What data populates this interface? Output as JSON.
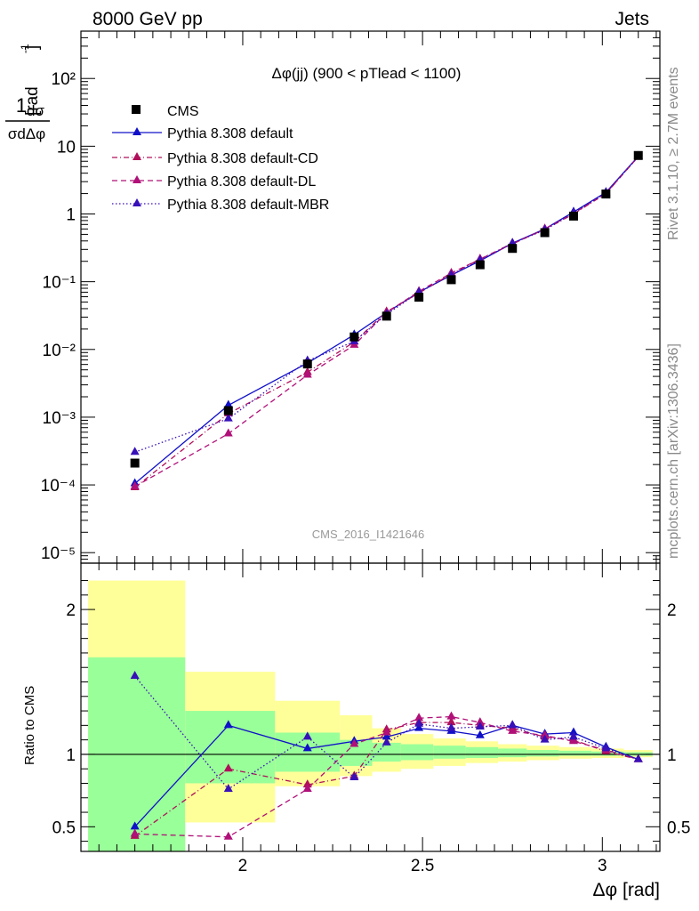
{
  "header": {
    "left": "8000 GeV pp",
    "right": "Jets"
  },
  "side_text": {
    "rivet": "Rivet 3.1.10, ≥ 2.7M events",
    "mcplots": "mcplots.cern.ch [arXiv:1306.3436]"
  },
  "colors": {
    "cms": "#000000",
    "default": "#1010c8",
    "cd": "#b0105a",
    "dl": "#b01078",
    "mbr": "#3810b8",
    "band_inner": "#99ff99",
    "band_outer": "#ffff99"
  },
  "chart_data": [
    {
      "type": "line",
      "title": "Δφ(jj) (900 < pTlead <  1100)",
      "ylabel": "1/σ dσ/dΔφ [rad⁻¹]",
      "watermark": "CMS_2016_I1421646",
      "yscale": "log",
      "ylim": [
        7e-06,
        500
      ],
      "xlim": [
        1.55,
        3.16
      ],
      "x_ticks": [
        "2",
        "2.5",
        "3"
      ],
      "y_ticks": [
        "10⁻⁵",
        "10⁻⁴",
        "10⁻³",
        "10⁻²",
        "10⁻¹",
        "1",
        "10",
        "10²"
      ],
      "legend_position": "top-left",
      "x": [
        1.7,
        1.96,
        2.18,
        2.31,
        2.4,
        2.49,
        2.58,
        2.66,
        2.75,
        2.84,
        2.92,
        3.01,
        3.1
      ],
      "series": [
        {
          "name": "CMS",
          "style": "markers",
          "values": [
            0.00021,
            0.00125,
            0.0061,
            0.0153,
            0.031,
            0.059,
            0.107,
            0.178,
            0.31,
            0.53,
            0.93,
            1.97,
            7.3
          ]
        },
        {
          "name": "Pythia 8.308 default",
          "style": "solid",
          "values": [
            0.000105,
            0.0015,
            0.0063,
            0.0165,
            0.035,
            0.07,
            0.125,
            0.203,
            0.37,
            0.6,
            1.07,
            2.09,
            7.1
          ]
        },
        {
          "name": "Pythia 8.308 default-CD",
          "style": "dashdot",
          "values": [
            9.15e-05,
            0.00113,
            0.0046,
            0.0129,
            0.036,
            0.068,
            0.13,
            0.215,
            0.37,
            0.59,
            1.0,
            2.0,
            7.0
          ]
        },
        {
          "name": "Pythia 8.308 default-DL",
          "style": "dashed",
          "values": [
            9.45e-05,
            0.00057,
            0.0042,
            0.0116,
            0.035,
            0.072,
            0.134,
            0.216,
            0.36,
            0.6,
            1.02,
            2.02,
            7.0
          ]
        },
        {
          "name": "Pythia 8.308 default-MBR",
          "style": "dotted",
          "values": [
            0.000305,
            0.00095,
            0.0068,
            0.0131,
            0.033,
            0.07,
            0.125,
            0.208,
            0.37,
            0.58,
            1.04,
            2.05,
            7.05
          ]
        }
      ]
    },
    {
      "type": "line",
      "ylabel": "Ratio to CMS",
      "xlabel": "Δφ [rad]",
      "ylim": [
        0.33,
        2.32
      ],
      "xlim": [
        1.55,
        3.16
      ],
      "x_ticks": [
        "2",
        "2.5",
        "3"
      ],
      "y_ticks": [
        "0.5",
        "1",
        "2"
      ],
      "x": [
        1.7,
        1.96,
        2.18,
        2.31,
        2.4,
        2.49,
        2.58,
        2.66,
        2.75,
        2.84,
        2.92,
        3.01,
        3.1
      ],
      "uncertainty_bands": {
        "edges": [
          1.57,
          1.84,
          2.09,
          2.27,
          2.36,
          2.44,
          2.53,
          2.62,
          2.71,
          2.79,
          2.88,
          2.97,
          3.06,
          3.14
        ],
        "inner_low": [
          0.33,
          0.8,
          0.88,
          0.92,
          0.95,
          0.96,
          0.97,
          0.975,
          0.98,
          0.985,
          0.99,
          0.99,
          0.99
        ],
        "inner_high": [
          1.67,
          1.3,
          1.15,
          1.1,
          1.08,
          1.07,
          1.06,
          1.05,
          1.04,
          1.03,
          1.025,
          1.02,
          1.015
        ],
        "outer_low": [
          0.33,
          0.53,
          0.78,
          0.85,
          0.88,
          0.9,
          0.92,
          0.94,
          0.95,
          0.96,
          0.97,
          0.975,
          0.98
        ],
        "outer_high": [
          2.2,
          1.57,
          1.37,
          1.27,
          1.18,
          1.14,
          1.11,
          1.09,
          1.07,
          1.06,
          1.05,
          1.04,
          1.03
        ]
      },
      "series": [
        {
          "name": "Pythia 8.308 default",
          "values": [
            0.5,
            1.2,
            1.04,
            1.09,
            1.12,
            1.18,
            1.16,
            1.13,
            1.2,
            1.14,
            1.15,
            1.05,
            0.965
          ]
        },
        {
          "name": "Pythia 8.308 default-CD",
          "values": [
            0.435,
            0.9,
            0.79,
            0.85,
            1.17,
            1.22,
            1.22,
            1.2,
            1.18,
            1.12,
            1.1,
            1.02,
            0.965
          ]
        },
        {
          "name": "Pythia 8.308 default-DL",
          "values": [
            0.45,
            0.43,
            0.76,
            1.07,
            1.15,
            1.25,
            1.26,
            1.22,
            1.16,
            1.13,
            1.09,
            1.03,
            0.965
          ]
        },
        {
          "name": "Pythia 8.308 default-MBR",
          "values": [
            1.54,
            0.76,
            1.12,
            0.84,
            1.08,
            1.21,
            1.18,
            1.19,
            1.2,
            1.1,
            1.12,
            1.04,
            0.965
          ]
        }
      ]
    }
  ]
}
